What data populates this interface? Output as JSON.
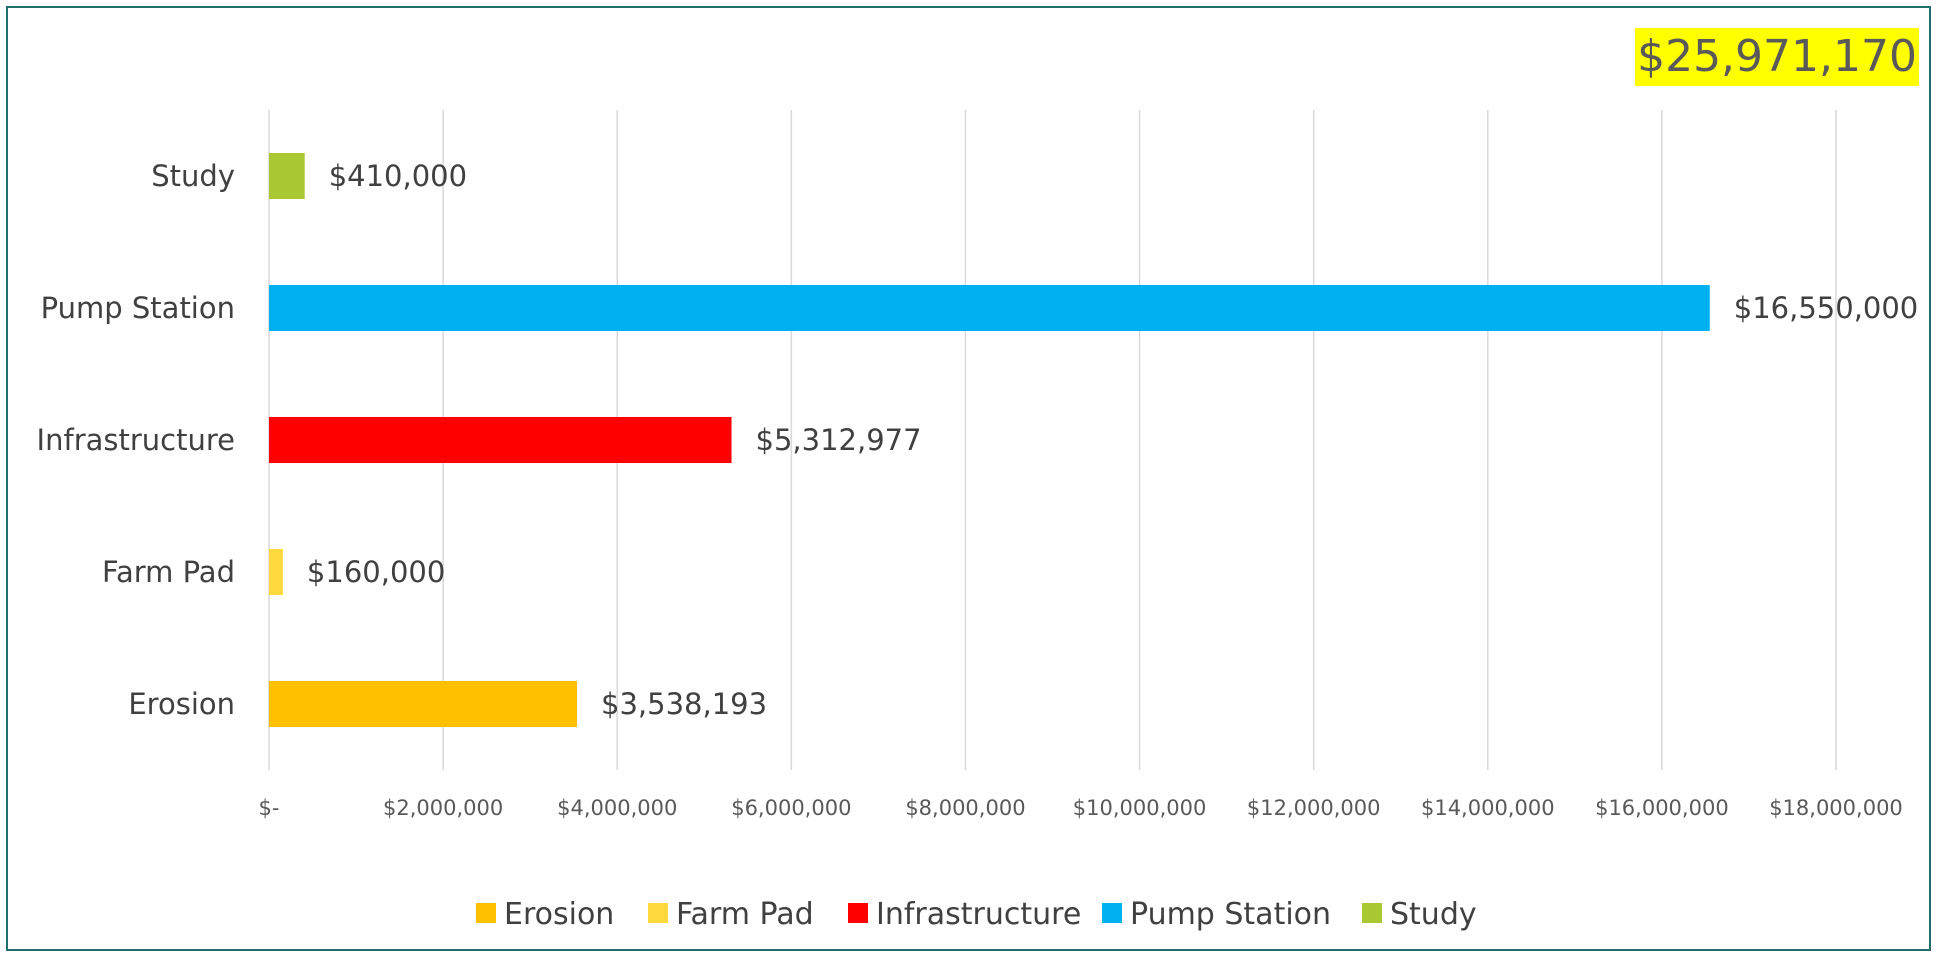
{
  "total_label": "$25,971,170",
  "chart_data": {
    "type": "bar",
    "orientation": "horizontal",
    "title": "",
    "xlabel": "",
    "ylabel": "",
    "xlim": [
      0,
      18000000
    ],
    "grid": true,
    "legend_position": "bottom",
    "categories": [
      "Erosion",
      "Farm Pad",
      "Infrastructure",
      "Pump Station",
      "Study"
    ],
    "values": [
      3538193,
      160000,
      5312977,
      16550000,
      410000
    ],
    "data_labels": [
      "$3,538,193",
      "$160,000",
      "$5,312,977",
      "$16,550,000",
      "$410,000"
    ],
    "colors": [
      "#ffc000",
      "#ffd93d",
      "#ff0000",
      "#00b0f0",
      "#a9c834"
    ],
    "x_ticks": [
      0,
      2000000,
      4000000,
      6000000,
      8000000,
      10000000,
      12000000,
      14000000,
      16000000,
      18000000
    ],
    "x_tick_labels": [
      "$-",
      "$2,000,000",
      "$4,000,000",
      "$6,000,000",
      "$8,000,000",
      "$10,000,000",
      "$12,000,000",
      "$14,000,000",
      "$16,000,000",
      "$18,000,000"
    ],
    "legend": [
      "Erosion",
      "Farm Pad",
      "Infrastructure",
      "Pump Station",
      "Study"
    ]
  }
}
